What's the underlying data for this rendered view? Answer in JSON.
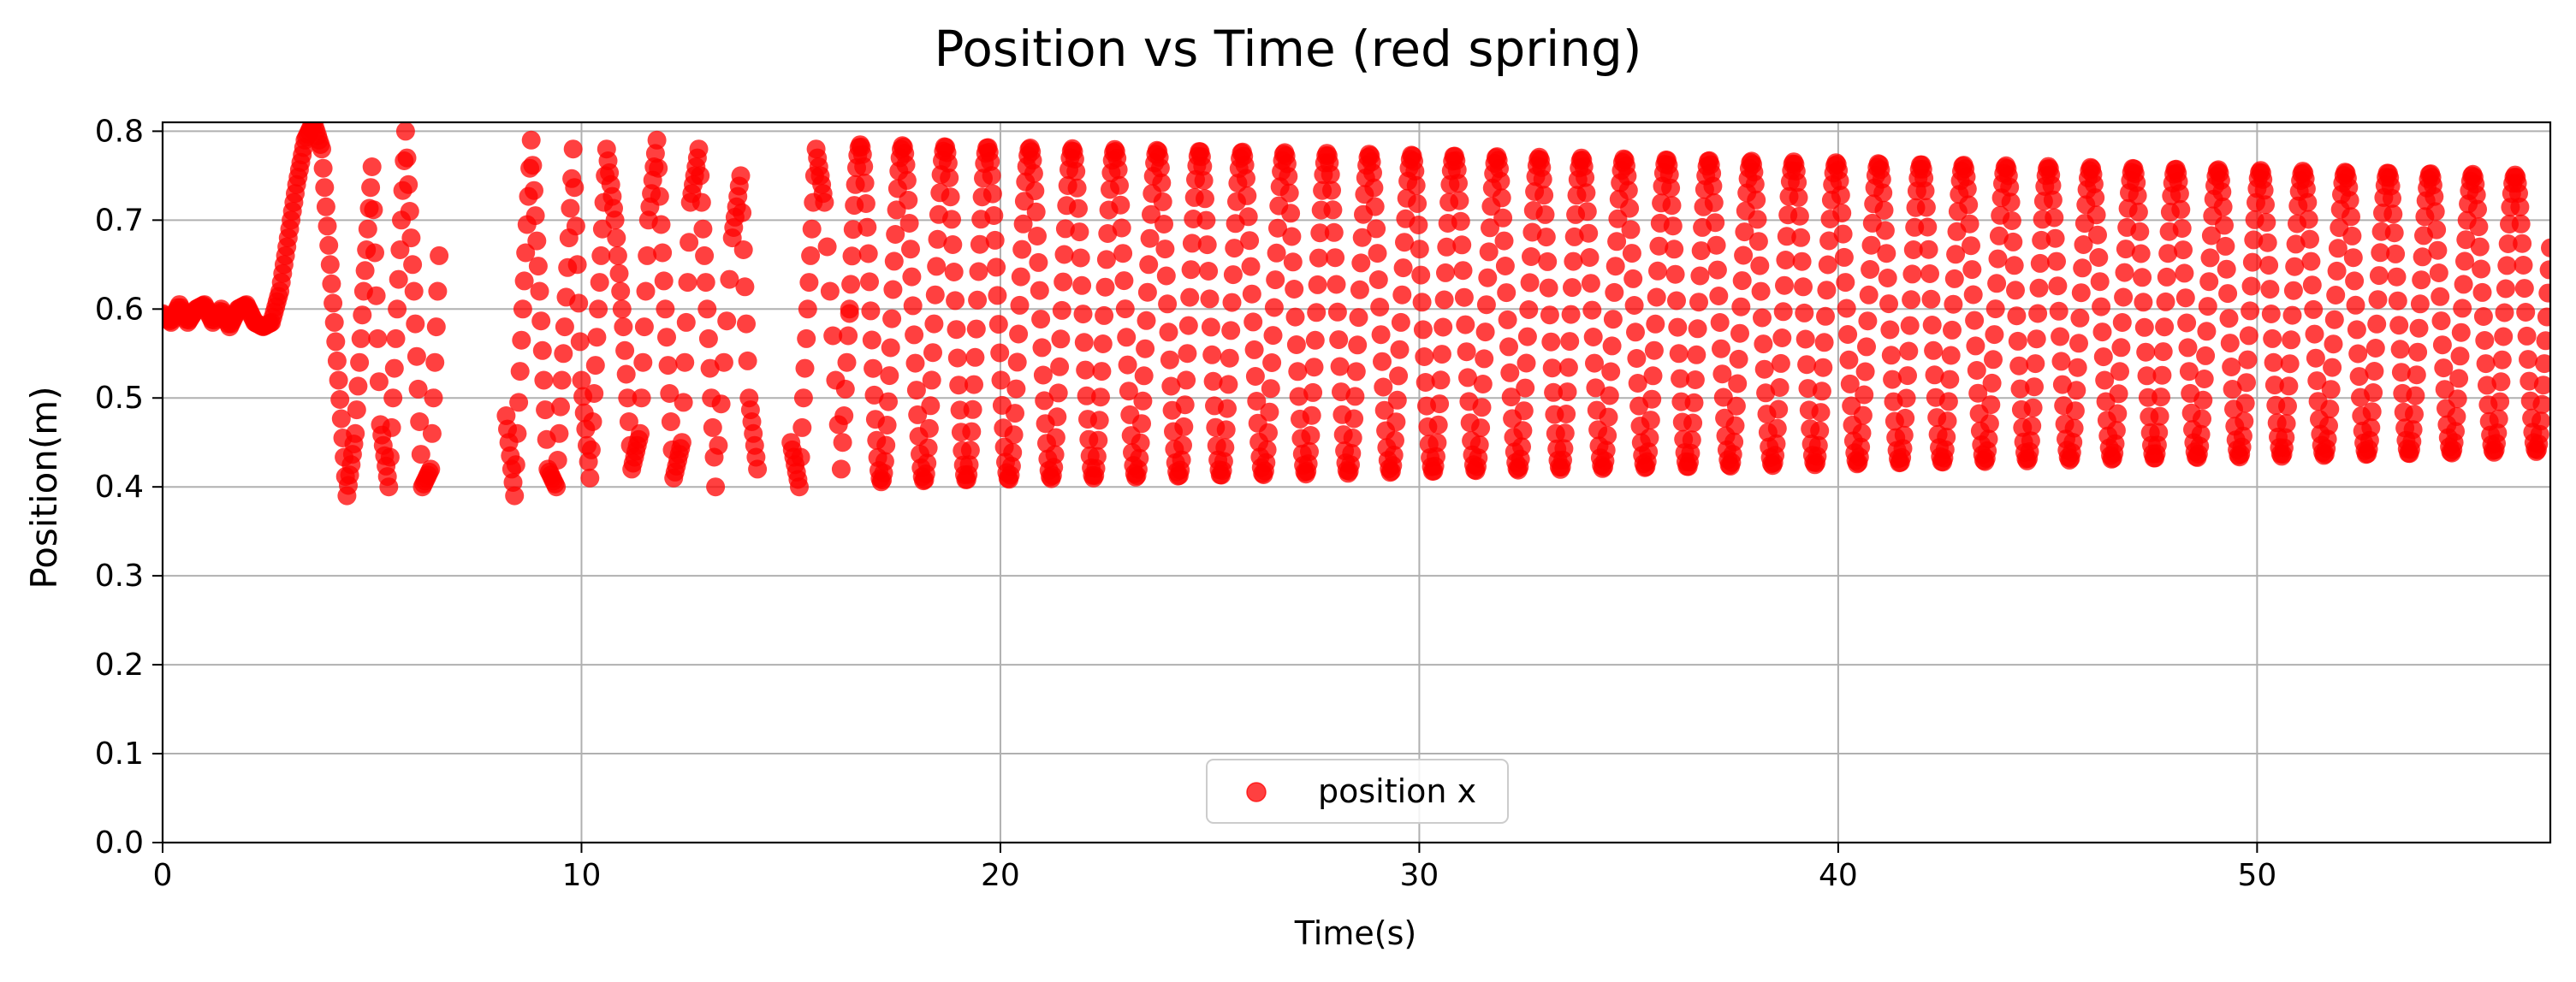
{
  "chart_data": {
    "type": "scatter",
    "title": "Position vs Time (red spring)",
    "xlabel": "Time(s)",
    "ylabel": "Position(m)",
    "xlim": [
      0,
      57
    ],
    "ylim": [
      0.0,
      0.81
    ],
    "xticks": [
      0,
      10,
      20,
      30,
      40,
      50
    ],
    "yticks": [
      0.0,
      0.1,
      0.2,
      0.3,
      0.4,
      0.5,
      0.6,
      0.7,
      0.8
    ],
    "xtick_labels": [
      "0",
      "10",
      "20",
      "30",
      "40",
      "50"
    ],
    "ytick_labels": [
      "0.0",
      "0.1",
      "0.2",
      "0.3",
      "0.4",
      "0.5",
      "0.6",
      "0.7",
      "0.8"
    ],
    "grid": true,
    "legend_position": "lower center",
    "series": [
      {
        "name": "position x",
        "color": "#ff0000",
        "marker": "circle",
        "description_points": [
          [
            0.0,
            0.595
          ],
          [
            0.2,
            0.585
          ],
          [
            0.4,
            0.605
          ],
          [
            0.6,
            0.585
          ],
          [
            0.8,
            0.6
          ],
          [
            1.0,
            0.605
          ],
          [
            1.2,
            0.585
          ],
          [
            1.4,
            0.6
          ],
          [
            1.6,
            0.58
          ],
          [
            1.8,
            0.6
          ],
          [
            2.0,
            0.605
          ],
          [
            2.2,
            0.585
          ],
          [
            2.4,
            0.58
          ],
          [
            2.6,
            0.585
          ],
          [
            2.8,
            0.62
          ],
          [
            3.0,
            0.68
          ],
          [
            3.2,
            0.74
          ],
          [
            3.4,
            0.79
          ],
          [
            3.6,
            0.81
          ],
          [
            3.8,
            0.78
          ],
          [
            4.0,
            0.65
          ],
          [
            4.2,
            0.52
          ],
          [
            4.4,
            0.39
          ],
          [
            4.6,
            0.46
          ],
          [
            4.8,
            0.62
          ],
          [
            5.0,
            0.76
          ],
          [
            5.2,
            0.47
          ],
          [
            5.4,
            0.4
          ],
          [
            5.6,
            0.6
          ],
          [
            5.8,
            0.8
          ],
          [
            6.0,
            0.62
          ],
          [
            6.2,
            0.4
          ],
          [
            6.4,
            0.42
          ],
          [
            6.6,
            0.66
          ],
          [
            8.2,
            0.48
          ],
          [
            8.4,
            0.39
          ],
          [
            8.6,
            0.6
          ],
          [
            8.8,
            0.79
          ],
          [
            9.0,
            0.62
          ],
          [
            9.2,
            0.42
          ],
          [
            9.4,
            0.4
          ],
          [
            9.6,
            0.58
          ],
          [
            9.8,
            0.78
          ],
          [
            10.0,
            0.52
          ],
          [
            10.2,
            0.41
          ],
          [
            10.4,
            0.6
          ],
          [
            10.6,
            0.78
          ],
          [
            10.8,
            0.7
          ],
          [
            11.0,
            0.58
          ],
          [
            11.2,
            0.42
          ],
          [
            11.4,
            0.46
          ],
          [
            11.6,
            0.7
          ],
          [
            11.8,
            0.79
          ],
          [
            12.0,
            0.6
          ],
          [
            12.2,
            0.41
          ],
          [
            12.4,
            0.45
          ],
          [
            12.6,
            0.72
          ],
          [
            12.8,
            0.78
          ],
          [
            13.0,
            0.6
          ],
          [
            13.2,
            0.4
          ],
          [
            13.6,
            0.68
          ],
          [
            13.8,
            0.75
          ],
          [
            14.0,
            0.5
          ],
          [
            14.2,
            0.42
          ],
          [
            15.0,
            0.45
          ],
          [
            15.2,
            0.4
          ],
          [
            15.4,
            0.6
          ],
          [
            15.6,
            0.78
          ],
          [
            15.8,
            0.72
          ],
          [
            16.2,
            0.42
          ],
          [
            16.4,
            0.6
          ]
        ],
        "oscillation_region": {
          "x_start": 16.4,
          "x_end": 57,
          "period": 1.013,
          "center": 0.595,
          "amplitude_start": 0.19,
          "amplitude_end": 0.155
        }
      }
    ]
  }
}
